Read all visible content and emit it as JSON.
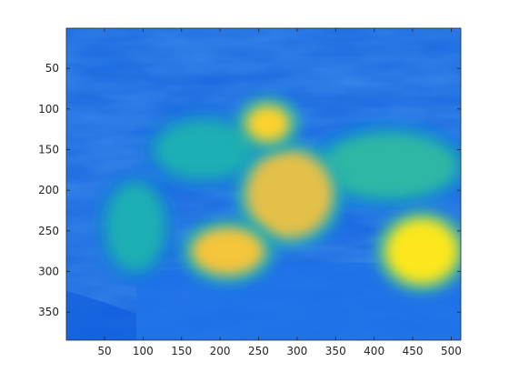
{
  "chart_data": {
    "type": "heatmap",
    "title": "",
    "xlabel": "",
    "ylabel": "",
    "xlim": [
      0.5,
      512.5
    ],
    "ylim": [
      0.5,
      384.5
    ],
    "y_direction": "reversed (row 1 at top)",
    "grid": false,
    "colormap": "parula",
    "colormap_stops": [
      "#352a87",
      "#0f5cdd",
      "#1481d6",
      "#06a4ca",
      "#2eb7a4",
      "#87bf77",
      "#d1bb59",
      "#fec832",
      "#f9fb0e"
    ],
    "x_ticks": [
      50,
      100,
      150,
      200,
      250,
      300,
      350,
      400,
      450,
      500
    ],
    "y_ticks": [
      50,
      100,
      150,
      200,
      250,
      300,
      350
    ],
    "x_tick_labels": [
      "50",
      "100",
      "150",
      "200",
      "250",
      "300",
      "350",
      "400",
      "450",
      "500"
    ],
    "y_tick_labels": [
      "50",
      "100",
      "150",
      "200",
      "250",
      "300",
      "350"
    ],
    "image_content": "grayscale photograph of peppers and garlic on draped cloth, mapped through the colormap",
    "bright_regions": [
      {
        "name": "garlic",
        "x": 462,
        "y": 275,
        "level": 0.95
      },
      {
        "name": "center-yellow-pepper",
        "x": 290,
        "y": 205,
        "level": 0.8
      },
      {
        "name": "small-top-pepper",
        "x": 262,
        "y": 118,
        "level": 0.9
      },
      {
        "name": "front-yellow-pepper",
        "x": 210,
        "y": 275,
        "level": 0.85
      },
      {
        "name": "right-pepper-top",
        "x": 420,
        "y": 170,
        "level": 0.5
      },
      {
        "name": "left-pepper",
        "x": 90,
        "y": 245,
        "level": 0.45
      },
      {
        "name": "upper-left-pepper",
        "x": 180,
        "y": 150,
        "level": 0.45
      }
    ]
  }
}
